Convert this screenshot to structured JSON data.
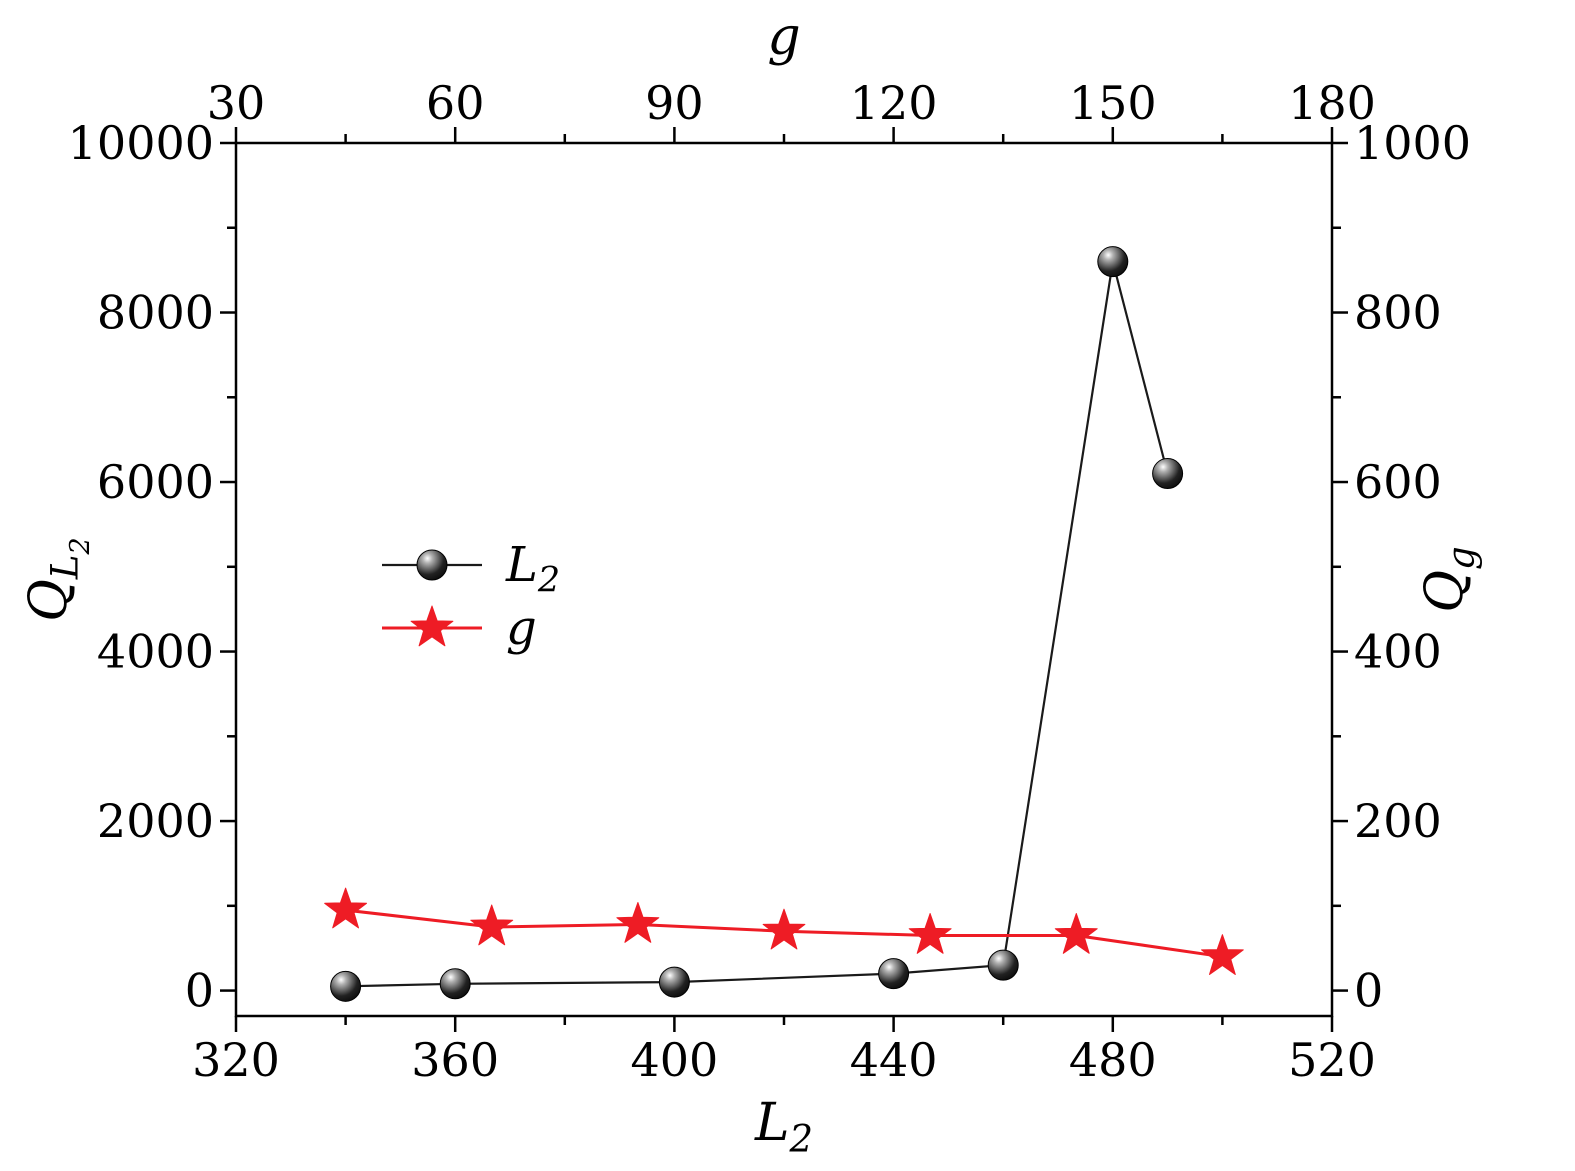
{
  "chart_data": {
    "type": "line",
    "title": "",
    "background": "#ffffff",
    "frame_color": "#000000",
    "axes": {
      "bottom": {
        "label_parts": [
          {
            "t": "L"
          },
          {
            "t": "2",
            "dy": 1
          }
        ],
        "min": 320,
        "max": 520,
        "ticks": [
          320,
          360,
          400,
          440,
          480,
          520
        ]
      },
      "top": {
        "label_parts": [
          {
            "t": "g"
          }
        ],
        "min": 30,
        "max": 180,
        "ticks": [
          30,
          60,
          90,
          120,
          150,
          180
        ]
      },
      "left": {
        "label_parts": [
          {
            "t": "Q"
          },
          {
            "t": "L",
            "dy": 1
          },
          {
            "t": "2",
            "dy": 2
          }
        ],
        "min": -300,
        "max": 10000,
        "ticks": [
          0,
          2000,
          4000,
          6000,
          8000,
          10000
        ]
      },
      "right": {
        "label_parts": [
          {
            "t": "Q"
          },
          {
            "t": "g",
            "dy": 1
          }
        ],
        "min": -30,
        "max": 1000,
        "ticks": [
          0,
          200,
          400,
          600,
          800,
          1000
        ]
      }
    },
    "series": [
      {
        "name": "L2",
        "label_parts": [
          {
            "t": "L"
          },
          {
            "t": "2",
            "dy": 1
          }
        ],
        "xaxis": "bottom",
        "yaxis": "left",
        "marker": "sphere",
        "color": "#1a1a1a",
        "line_width": 2.2,
        "x": [
          340,
          360,
          400,
          440,
          460,
          480,
          490
        ],
        "y": [
          50,
          80,
          100,
          200,
          300,
          8600,
          6100
        ]
      },
      {
        "name": "g",
        "label_parts": [
          {
            "t": "g"
          }
        ],
        "xaxis": "top",
        "yaxis": "right",
        "marker": "star",
        "color": "#ee1c25",
        "line_width": 3,
        "x": [
          45,
          65,
          85,
          105,
          125,
          145,
          165
        ],
        "y": [
          95,
          75,
          78,
          70,
          65,
          65,
          40
        ]
      }
    ],
    "legend": {
      "position": "inside-upper-left",
      "entries": [
        "L2",
        "g"
      ]
    }
  }
}
